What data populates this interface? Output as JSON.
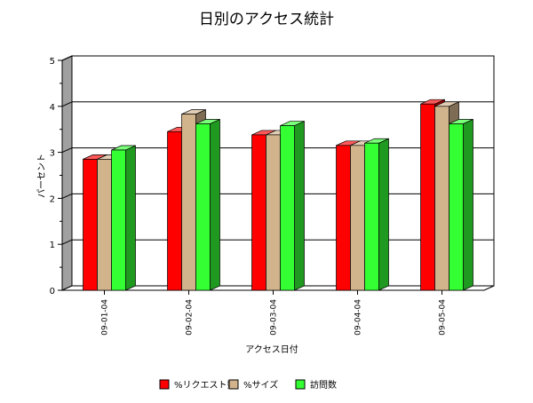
{
  "chart_data": {
    "type": "bar",
    "title": "日別のアクセス統計",
    "xlabel": "アクセス日付",
    "ylabel": "パーセント",
    "ylim": [
      0,
      5
    ],
    "yticks": [
      "0",
      "1",
      "2",
      "3",
      "4",
      "5"
    ],
    "categories": [
      "09-01-04",
      "09-02-04",
      "09-03-04",
      "09-04-04",
      "09-05-04"
    ],
    "series": [
      {
        "name": "%リクエスト数",
        "color": "#ff0000",
        "values": [
          2.85,
          3.45,
          3.38,
          3.15,
          4.05
        ]
      },
      {
        "name": "%サイズ",
        "color": "#d2b48c",
        "values": [
          2.85,
          3.83,
          3.38,
          3.15,
          4.0
        ]
      },
      {
        "name": "訪問数",
        "color": "#33ff33",
        "values": [
          3.05,
          3.62,
          3.58,
          3.2,
          3.62
        ]
      }
    ],
    "grid": true,
    "legend_position": "bottom",
    "style": "3d"
  }
}
